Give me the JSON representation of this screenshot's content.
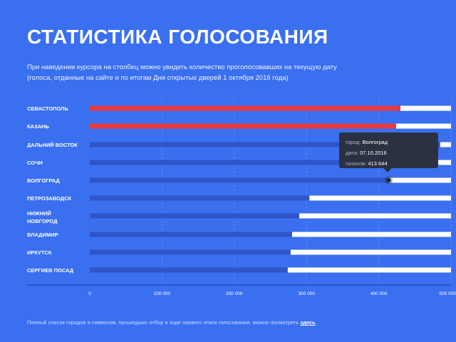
{
  "header": {
    "title": "СТАТИСТИКА ГОЛОСОВАНИЯ",
    "subtitle_line1": "При наведении курсора на столбец можно увидеть количество проголосовавших на текущую дату",
    "subtitle_line2": "(голоса, отданные на сайте и по итогам Дня открытых дверей 1 октября 2016 года)"
  },
  "colors": {
    "background": "#3a6ff0",
    "highlight_bar": "#e8393f",
    "normal_bar": "#2f55c9",
    "remainder": "#ffffff",
    "tooltip_bg": "#2b3140"
  },
  "chart_data": {
    "type": "bar",
    "orientation": "horizontal",
    "categories": [
      "СЕВАСТОПОЛЬ",
      "КАЗАНЬ",
      "ДАЛЬНИЙ ВОСТОК",
      "СОЧИ",
      "ВОЛГОГРАД",
      "ПЕТРОЗАВОДСК",
      "НИЖНИЙ НОВГОРОД",
      "ВЛАДИМИР",
      "ИРКУТСК",
      "СЕРГИЕВ ПОСАД"
    ],
    "values": [
      430000,
      424000,
      485000,
      475000,
      413644,
      304000,
      290000,
      280000,
      278000,
      274000
    ],
    "highlighted": [
      true,
      true,
      false,
      false,
      false,
      false,
      false,
      false,
      false,
      false
    ],
    "xlim": [
      0,
      500000
    ],
    "xticks": [
      "0",
      "100 000",
      "200 000",
      "300 000",
      "400 000",
      "500 000"
    ],
    "grid": true
  },
  "tooltip": {
    "city_label": "город:",
    "city": "Волгоград",
    "date_label": "дата:",
    "date": "07.10.2016",
    "votes_label": "голосов:",
    "votes": "413 644"
  },
  "footer": {
    "text": "Полный список городов и символов, прошедших отбор в ходе первого этапа голосования, можно посмотреть",
    "link": "здесь"
  }
}
